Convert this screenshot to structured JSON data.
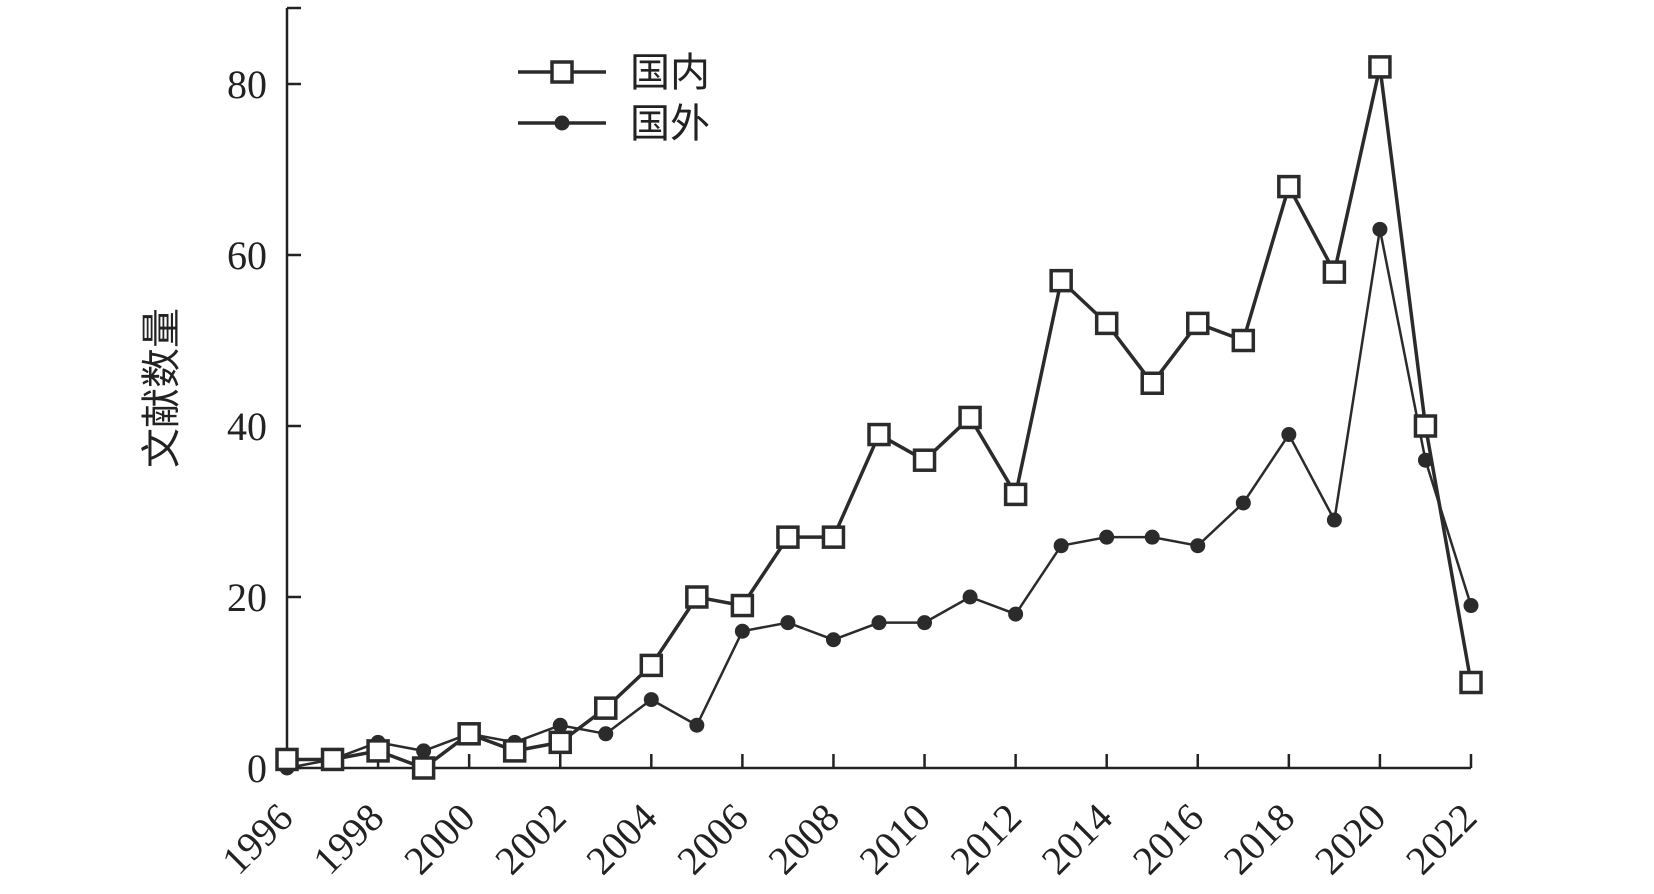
{
  "chart_data": {
    "type": "line",
    "title": "",
    "xlabel": "",
    "ylabel": "文献数量",
    "x": [
      1996,
      1997,
      1998,
      1999,
      2000,
      2001,
      2002,
      2003,
      2004,
      2005,
      2006,
      2007,
      2008,
      2009,
      2010,
      2011,
      2012,
      2013,
      2014,
      2015,
      2016,
      2017,
      2018,
      2019,
      2020,
      2021,
      2022
    ],
    "x_tick_labels": [
      "1996",
      "1998",
      "2000",
      "2002",
      "2004",
      "2006",
      "2008",
      "2010",
      "2012",
      "2014",
      "2016",
      "2018",
      "2020",
      "2022"
    ],
    "xlim": [
      1996,
      2022
    ],
    "ylim": [
      0,
      90
    ],
    "y_ticks": [
      0,
      20,
      40,
      60,
      80
    ],
    "y_tick_labels": [
      "0",
      "20",
      "40",
      "60",
      "80"
    ],
    "grid": false,
    "legend_placement": "top-left",
    "series": [
      {
        "name": "国内",
        "marker": "open-square",
        "color": "#2b2b2b",
        "values": [
          1,
          1,
          2,
          0,
          4,
          2,
          3,
          7,
          12,
          20,
          19,
          27,
          27,
          39,
          36,
          41,
          32,
          57,
          52,
          45,
          52,
          50,
          68,
          58,
          82,
          40,
          10
        ]
      },
      {
        "name": "国外",
        "marker": "filled-circle",
        "color": "#2b2b2b",
        "values": [
          0,
          1,
          3,
          2,
          4,
          3,
          5,
          4,
          8,
          5,
          16,
          17,
          15,
          17,
          17,
          20,
          18,
          26,
          27,
          27,
          26,
          31,
          39,
          29,
          63,
          36,
          19
        ]
      }
    ]
  }
}
